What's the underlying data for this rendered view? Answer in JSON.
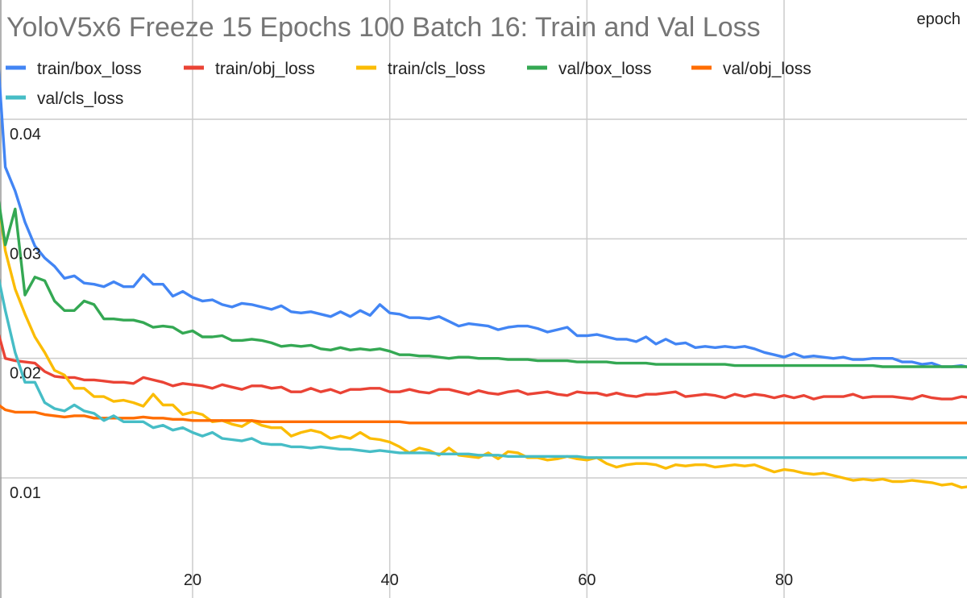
{
  "chart_data": {
    "type": "line",
    "title": "YoloV5x6 Freeze 15 Epochs 100 Batch 16: Train and Val Loss",
    "xlabel": "epoch",
    "ylabel": "",
    "xlim": [
      0,
      99
    ],
    "ylim": [
      0,
      0.05
    ],
    "x_ticks": [
      20,
      40,
      60,
      80
    ],
    "y_ticks": [
      0.01,
      0.02,
      0.03,
      0.04
    ],
    "y_tick_labels": [
      "0.01",
      "0.02",
      "0.03",
      "0.04"
    ],
    "grid": true,
    "legend_position": "top",
    "x_start": 0,
    "x_step": 1,
    "series": [
      {
        "name": "train/box_loss",
        "color": "#4285f4",
        "values": [
          0.0482,
          0.036,
          0.034,
          0.0314,
          0.0294,
          0.0284,
          0.0277,
          0.0267,
          0.0269,
          0.0263,
          0.0262,
          0.026,
          0.0264,
          0.026,
          0.026,
          0.027,
          0.0262,
          0.0262,
          0.0252,
          0.0256,
          0.0251,
          0.0248,
          0.0249,
          0.0245,
          0.0243,
          0.0246,
          0.0245,
          0.0243,
          0.0241,
          0.0244,
          0.0239,
          0.0238,
          0.0239,
          0.0237,
          0.0235,
          0.0239,
          0.0235,
          0.024,
          0.0236,
          0.0245,
          0.0238,
          0.0237,
          0.0234,
          0.0234,
          0.0233,
          0.0235,
          0.0231,
          0.0227,
          0.0229,
          0.0228,
          0.0227,
          0.0224,
          0.0226,
          0.0227,
          0.0227,
          0.0225,
          0.0222,
          0.0224,
          0.0226,
          0.0219,
          0.0219,
          0.022,
          0.0218,
          0.0216,
          0.0216,
          0.0214,
          0.0218,
          0.0212,
          0.0216,
          0.0212,
          0.0213,
          0.0209,
          0.021,
          0.0209,
          0.021,
          0.0209,
          0.021,
          0.0208,
          0.0205,
          0.0203,
          0.0201,
          0.0204,
          0.0201,
          0.0202,
          0.0201,
          0.02,
          0.0201,
          0.0199,
          0.0199,
          0.02,
          0.02,
          0.02,
          0.0197,
          0.0197,
          0.0195,
          0.0196,
          0.0193,
          0.0193,
          0.0194,
          0.0192
        ]
      },
      {
        "name": "train/obj_loss",
        "color": "#ea4335",
        "values": [
          0.023,
          0.02,
          0.0198,
          0.0197,
          0.0196,
          0.0189,
          0.0185,
          0.0184,
          0.0184,
          0.0182,
          0.0182,
          0.0181,
          0.018,
          0.018,
          0.0179,
          0.0184,
          0.0182,
          0.018,
          0.0177,
          0.0179,
          0.0178,
          0.0177,
          0.0175,
          0.0178,
          0.0176,
          0.0174,
          0.0177,
          0.0177,
          0.0175,
          0.0176,
          0.0172,
          0.0172,
          0.0175,
          0.0172,
          0.0174,
          0.0171,
          0.0174,
          0.0174,
          0.0175,
          0.0175,
          0.0172,
          0.0172,
          0.0174,
          0.0172,
          0.0171,
          0.0174,
          0.0174,
          0.0172,
          0.017,
          0.0173,
          0.0171,
          0.017,
          0.0172,
          0.0173,
          0.017,
          0.0171,
          0.0172,
          0.017,
          0.0169,
          0.0172,
          0.0171,
          0.0171,
          0.0169,
          0.0171,
          0.0169,
          0.0168,
          0.017,
          0.017,
          0.0171,
          0.0172,
          0.0168,
          0.0169,
          0.017,
          0.0169,
          0.0167,
          0.017,
          0.0168,
          0.017,
          0.0169,
          0.0167,
          0.0169,
          0.0167,
          0.0169,
          0.0166,
          0.0168,
          0.0168,
          0.0168,
          0.017,
          0.0167,
          0.0168,
          0.0168,
          0.0168,
          0.0167,
          0.0166,
          0.0169,
          0.0167,
          0.0166,
          0.0166,
          0.0168,
          0.0167
        ]
      },
      {
        "name": "train/cls_loss",
        "color": "#fbbc04",
        "values": [
          0.035,
          0.029,
          0.0258,
          0.0237,
          0.0218,
          0.0205,
          0.019,
          0.0186,
          0.0175,
          0.0175,
          0.0168,
          0.0168,
          0.0164,
          0.0165,
          0.0163,
          0.016,
          0.017,
          0.0161,
          0.0161,
          0.0153,
          0.0155,
          0.0153,
          0.0147,
          0.0148,
          0.0145,
          0.0143,
          0.0148,
          0.0144,
          0.0142,
          0.0142,
          0.0135,
          0.0138,
          0.014,
          0.0138,
          0.0133,
          0.0135,
          0.0133,
          0.0138,
          0.0133,
          0.0132,
          0.013,
          0.0126,
          0.0121,
          0.0125,
          0.0123,
          0.0119,
          0.0125,
          0.0119,
          0.0118,
          0.0117,
          0.0121,
          0.0116,
          0.0122,
          0.0121,
          0.0117,
          0.0117,
          0.0115,
          0.0116,
          0.0118,
          0.0116,
          0.0115,
          0.0117,
          0.0112,
          0.0109,
          0.0111,
          0.0112,
          0.0112,
          0.0111,
          0.0108,
          0.0111,
          0.011,
          0.0111,
          0.0111,
          0.0109,
          0.011,
          0.0111,
          0.011,
          0.0111,
          0.0108,
          0.0105,
          0.0107,
          0.0106,
          0.0104,
          0.0103,
          0.0104,
          0.0102,
          0.01,
          0.0098,
          0.0099,
          0.0098,
          0.0099,
          0.0097,
          0.0097,
          0.0098,
          0.0097,
          0.0096,
          0.0094,
          0.0095,
          0.0092,
          0.0093
        ]
      },
      {
        "name": "val/box_loss",
        "color": "#34a853",
        "values": [
          0.035,
          0.0295,
          0.0325,
          0.0253,
          0.0268,
          0.0265,
          0.0248,
          0.024,
          0.024,
          0.0248,
          0.0245,
          0.0233,
          0.0233,
          0.0232,
          0.0232,
          0.023,
          0.0226,
          0.0227,
          0.0226,
          0.0221,
          0.0223,
          0.0218,
          0.0218,
          0.0219,
          0.0215,
          0.0215,
          0.0216,
          0.0215,
          0.0213,
          0.021,
          0.0211,
          0.021,
          0.0211,
          0.0208,
          0.0207,
          0.0209,
          0.0207,
          0.0208,
          0.0207,
          0.0208,
          0.0206,
          0.0203,
          0.0203,
          0.0202,
          0.0202,
          0.0201,
          0.02,
          0.0201,
          0.0201,
          0.02,
          0.02,
          0.02,
          0.0199,
          0.0199,
          0.0199,
          0.0198,
          0.0198,
          0.0198,
          0.0198,
          0.0197,
          0.0197,
          0.0197,
          0.0197,
          0.0196,
          0.0196,
          0.0196,
          0.0196,
          0.0195,
          0.0195,
          0.0195,
          0.0195,
          0.0195,
          0.0195,
          0.0195,
          0.0195,
          0.0194,
          0.0194,
          0.0194,
          0.0194,
          0.0194,
          0.0194,
          0.0194,
          0.0194,
          0.0194,
          0.0194,
          0.0194,
          0.0194,
          0.0194,
          0.0194,
          0.0194,
          0.0193,
          0.0193,
          0.0193,
          0.0193,
          0.0193,
          0.0193,
          0.0193,
          0.0193,
          0.0193,
          0.0193
        ]
      },
      {
        "name": "val/obj_loss",
        "color": "#ff6d01",
        "values": [
          0.0163,
          0.0157,
          0.0155,
          0.0155,
          0.0155,
          0.0153,
          0.0152,
          0.0151,
          0.0152,
          0.0152,
          0.015,
          0.015,
          0.015,
          0.015,
          0.015,
          0.0151,
          0.015,
          0.015,
          0.0149,
          0.0149,
          0.0148,
          0.0148,
          0.0148,
          0.0148,
          0.0148,
          0.0148,
          0.0148,
          0.0147,
          0.0147,
          0.0147,
          0.0147,
          0.0147,
          0.0147,
          0.0147,
          0.0147,
          0.0147,
          0.0147,
          0.0147,
          0.0147,
          0.0147,
          0.0147,
          0.0147,
          0.0146,
          0.0146,
          0.0146,
          0.0146,
          0.0146,
          0.0146,
          0.0146,
          0.0146,
          0.0146,
          0.0146,
          0.0146,
          0.0146,
          0.0146,
          0.0146,
          0.0146,
          0.0146,
          0.0146,
          0.0146,
          0.0146,
          0.0146,
          0.0146,
          0.0146,
          0.0146,
          0.0146,
          0.0146,
          0.0146,
          0.0146,
          0.0146,
          0.0146,
          0.0146,
          0.0146,
          0.0146,
          0.0146,
          0.0146,
          0.0146,
          0.0146,
          0.0146,
          0.0146,
          0.0146,
          0.0146,
          0.0146,
          0.0146,
          0.0146,
          0.0146,
          0.0146,
          0.0146,
          0.0146,
          0.0146,
          0.0146,
          0.0146,
          0.0146,
          0.0146,
          0.0146,
          0.0146,
          0.0146,
          0.0146,
          0.0146,
          0.0146
        ]
      },
      {
        "name": "val/cls_loss",
        "color": "#46bdc6",
        "values": [
          0.028,
          0.024,
          0.0205,
          0.018,
          0.018,
          0.0163,
          0.0158,
          0.0156,
          0.0161,
          0.0156,
          0.0154,
          0.0148,
          0.0152,
          0.0147,
          0.0147,
          0.0147,
          0.0142,
          0.0144,
          0.014,
          0.0142,
          0.0138,
          0.0135,
          0.0138,
          0.0133,
          0.0132,
          0.0131,
          0.0133,
          0.0129,
          0.0128,
          0.0128,
          0.0126,
          0.0126,
          0.0125,
          0.0126,
          0.0125,
          0.0124,
          0.0124,
          0.0123,
          0.0122,
          0.0123,
          0.0122,
          0.0121,
          0.0121,
          0.0121,
          0.0121,
          0.012,
          0.012,
          0.012,
          0.012,
          0.0119,
          0.0119,
          0.0119,
          0.0118,
          0.0118,
          0.0118,
          0.0118,
          0.0118,
          0.0118,
          0.0118,
          0.0118,
          0.0117,
          0.0117,
          0.0117,
          0.0117,
          0.0117,
          0.0117,
          0.0117,
          0.0117,
          0.0117,
          0.0117,
          0.0117,
          0.0117,
          0.0117,
          0.0117,
          0.0117,
          0.0117,
          0.0117,
          0.0117,
          0.0117,
          0.0117,
          0.0117,
          0.0117,
          0.0117,
          0.0117,
          0.0117,
          0.0117,
          0.0117,
          0.0117,
          0.0117,
          0.0117,
          0.0117,
          0.0117,
          0.0117,
          0.0117,
          0.0117,
          0.0117,
          0.0117,
          0.0117,
          0.0117,
          0.0117
        ]
      }
    ]
  }
}
